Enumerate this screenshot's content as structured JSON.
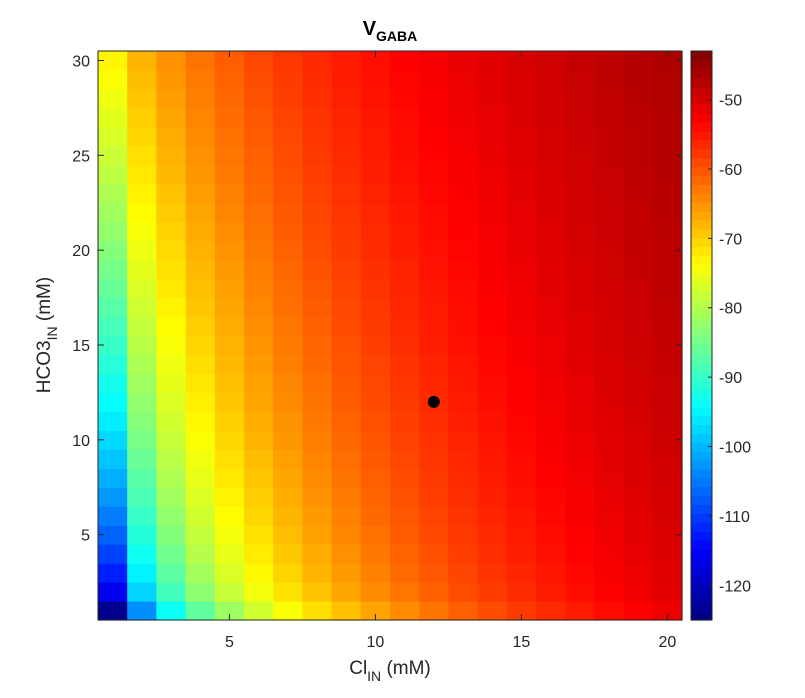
{
  "chart_data": {
    "type": "heatmap",
    "title": {
      "main": "V",
      "sub": "GABA"
    },
    "xlabel": {
      "main": "Cl",
      "sub": "IN",
      "suffix": " (mM)"
    },
    "ylabel": {
      "main": "HCO3",
      "sub": "IN",
      "suffix": " (mM)"
    },
    "xlim": [
      0.5,
      20.5
    ],
    "ylim": [
      0.5,
      30.5
    ],
    "x_ticks": [
      5,
      10,
      15,
      20
    ],
    "y_ticks": [
      5,
      10,
      15,
      20,
      25,
      30
    ],
    "x_tick_labels": [
      "5",
      "10",
      "15",
      "20"
    ],
    "y_tick_labels": [
      "5",
      "10",
      "15",
      "20",
      "25",
      "30"
    ],
    "x_values": [
      1,
      20
    ],
    "y_values": [
      1,
      30
    ],
    "grid": false,
    "colormap": "jet",
    "color_range": [
      -125,
      -43
    ],
    "colorbar": {
      "ticks": [
        -120,
        -110,
        -100,
        -90,
        -80,
        -70,
        -60,
        -50
      ],
      "tick_labels": [
        "-120",
        "-110",
        "-100",
        "-90",
        "-80",
        "-70",
        "-60",
        "-50"
      ]
    },
    "value_model": {
      "description_of_reading": "V_GABA in mV read from colorbar at corners",
      "corner_values": {
        "x1_y1": -124,
        "x20_y1": -52,
        "x1_y30": -73,
        "x20_y30": -44
      }
    },
    "marker": {
      "x": 12,
      "y": 12,
      "color": "#000000"
    }
  }
}
